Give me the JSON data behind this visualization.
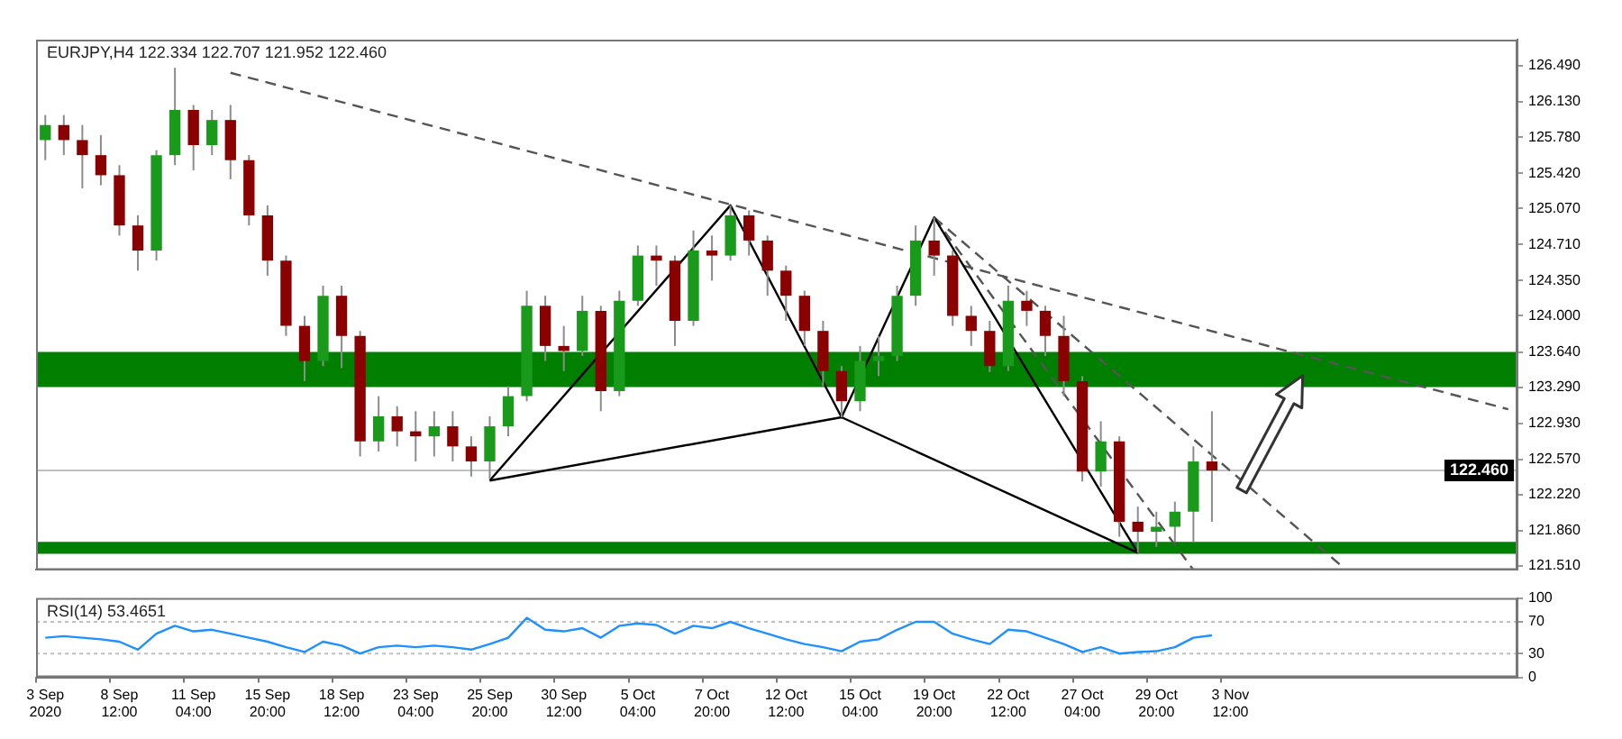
{
  "chart_data": [
    {
      "type": "candlestick",
      "title": "EURJPY,H4 122.334 122.707 121.952 122.460",
      "categories": [
        null,
        null,
        null,
        null,
        null,
        null,
        null,
        null,
        null,
        null,
        null,
        null,
        null,
        null,
        null,
        null,
        null,
        null,
        null,
        null,
        null,
        null,
        null,
        null,
        null,
        null,
        null,
        null,
        null,
        null,
        null,
        null,
        null,
        null,
        null,
        null,
        null,
        null,
        null,
        null,
        null,
        null,
        null,
        null,
        null,
        null,
        null,
        null,
        null,
        null,
        null,
        null,
        null,
        null,
        null,
        null,
        null,
        null,
        null,
        null,
        null,
        null,
        null,
        null,
        null,
        null,
        null,
        null,
        null,
        null,
        null,
        null,
        null,
        null,
        null,
        null,
        null,
        null,
        null,
        null
      ],
      "ohlc": [
        [
          125.75,
          126.0,
          125.55,
          125.9
        ],
        [
          125.9,
          126.0,
          125.6,
          125.75
        ],
        [
          125.75,
          125.9,
          125.27,
          125.6
        ],
        [
          125.6,
          125.8,
          125.3,
          125.4
        ],
        [
          125.4,
          125.5,
          124.8,
          124.9
        ],
        [
          124.9,
          125.0,
          124.45,
          124.65
        ],
        [
          124.65,
          125.65,
          124.55,
          125.6
        ],
        [
          125.6,
          126.47,
          125.5,
          126.05
        ],
        [
          126.05,
          126.1,
          125.45,
          125.7
        ],
        [
          125.7,
          126.05,
          125.6,
          125.95
        ],
        [
          125.95,
          126.1,
          125.36,
          125.55
        ],
        [
          125.55,
          125.6,
          124.9,
          125.0
        ],
        [
          125.0,
          125.1,
          124.4,
          124.55
        ],
        [
          124.55,
          124.6,
          123.8,
          123.9
        ],
        [
          123.9,
          124.0,
          123.35,
          123.55
        ],
        [
          123.55,
          124.3,
          123.5,
          124.2
        ],
        [
          124.2,
          124.3,
          123.48,
          123.8
        ],
        [
          123.8,
          123.85,
          122.6,
          122.75
        ],
        [
          122.75,
          123.2,
          122.65,
          123.0
        ],
        [
          123.0,
          123.1,
          122.7,
          122.85
        ],
        [
          122.85,
          123.05,
          122.55,
          122.8
        ],
        [
          122.8,
          123.05,
          122.6,
          122.9
        ],
        [
          122.9,
          123.05,
          122.55,
          122.7
        ],
        [
          122.7,
          122.8,
          122.4,
          122.55
        ],
        [
          122.55,
          123.0,
          122.38,
          122.9
        ],
        [
          122.9,
          123.3,
          122.8,
          123.2
        ],
        [
          123.2,
          124.25,
          123.15,
          124.1
        ],
        [
          124.1,
          124.2,
          123.55,
          123.7
        ],
        [
          123.7,
          123.9,
          123.45,
          123.65
        ],
        [
          123.65,
          124.2,
          123.6,
          124.05
        ],
        [
          124.05,
          124.1,
          123.05,
          123.25
        ],
        [
          123.25,
          124.25,
          123.2,
          124.15
        ],
        [
          124.15,
          124.7,
          124.1,
          124.6
        ],
        [
          124.6,
          124.7,
          124.3,
          124.55
        ],
        [
          124.55,
          124.6,
          123.7,
          123.95
        ],
        [
          123.95,
          124.85,
          123.9,
          124.65
        ],
        [
          124.65,
          124.8,
          124.35,
          124.6
        ],
        [
          124.6,
          125.1,
          124.55,
          125.0
        ],
        [
          125.0,
          125.05,
          124.6,
          124.75
        ],
        [
          124.75,
          124.8,
          124.2,
          124.45
        ],
        [
          124.45,
          124.5,
          123.95,
          124.2
        ],
        [
          124.2,
          124.25,
          123.7,
          123.85
        ],
        [
          123.85,
          123.95,
          123.3,
          123.45
        ],
        [
          123.45,
          123.5,
          122.99,
          123.15
        ],
        [
          123.15,
          123.7,
          123.05,
          123.55
        ],
        [
          123.55,
          123.8,
          123.4,
          123.6
        ],
        [
          123.6,
          124.3,
          123.55,
          124.2
        ],
        [
          124.2,
          124.9,
          124.1,
          124.75
        ],
        [
          124.75,
          124.98,
          124.4,
          124.6
        ],
        [
          124.6,
          124.65,
          123.9,
          124.0
        ],
        [
          124.0,
          124.1,
          123.7,
          123.85
        ],
        [
          123.85,
          123.95,
          123.44,
          123.5
        ],
        [
          123.5,
          124.3,
          123.45,
          124.15
        ],
        [
          124.15,
          124.25,
          123.9,
          124.05
        ],
        [
          124.05,
          124.1,
          123.6,
          123.8
        ],
        [
          123.8,
          124.0,
          123.2,
          123.35
        ],
        [
          123.35,
          123.4,
          122.35,
          122.45
        ],
        [
          122.45,
          122.95,
          122.3,
          122.75
        ],
        [
          122.75,
          122.8,
          121.8,
          121.95
        ],
        [
          121.95,
          122.1,
          121.64,
          121.85
        ],
        [
          121.85,
          122.05,
          121.7,
          121.9
        ],
        [
          121.9,
          122.15,
          121.75,
          122.05
        ],
        [
          122.05,
          122.7,
          121.75,
          122.55
        ],
        [
          122.55,
          123.05,
          121.95,
          122.46
        ],
        null,
        null,
        null,
        null,
        null,
        null,
        null,
        null,
        null,
        null,
        null,
        null,
        null,
        null,
        null,
        null
      ],
      "series": [
        {
          "type": "line",
          "color": "#000000",
          "line_style": "solid",
          "values": [
            null,
            null,
            null,
            null,
            null,
            null,
            null,
            null,
            null,
            null,
            null,
            null,
            null,
            null,
            null,
            null,
            null,
            null,
            null,
            null,
            null,
            null,
            null,
            null,
            122.36,
            null,
            null,
            null,
            null,
            null,
            null,
            null,
            null,
            null,
            null,
            null,
            null,
            125.1,
            null,
            null,
            null,
            null,
            null,
            122.99,
            null,
            null,
            null,
            null,
            124.98,
            null,
            null,
            null,
            null,
            null,
            null,
            null,
            null,
            null,
            null,
            121.64,
            null,
            null,
            null,
            null,
            null,
            null,
            null,
            null,
            null,
            null,
            null,
            null,
            null,
            null,
            null,
            null,
            null,
            null,
            null,
            null
          ]
        },
        {
          "type": "line",
          "color": "#000000",
          "line_style": "solid",
          "values": [
            null,
            null,
            null,
            null,
            null,
            null,
            null,
            null,
            null,
            null,
            null,
            null,
            null,
            null,
            null,
            null,
            null,
            null,
            null,
            null,
            null,
            null,
            null,
            null,
            122.36,
            null,
            null,
            null,
            null,
            null,
            null,
            null,
            null,
            null,
            null,
            null,
            null,
            null,
            null,
            null,
            null,
            null,
            null,
            122.99,
            null,
            null,
            null,
            null,
            null,
            null,
            null,
            null,
            null,
            null,
            null,
            null,
            null,
            null,
            null,
            121.64,
            null,
            null,
            null,
            null,
            null,
            null,
            null,
            null,
            null,
            null,
            null,
            null,
            null,
            null,
            null,
            null,
            null,
            null,
            null,
            null
          ]
        },
        {
          "type": "line",
          "color": "#555555",
          "line_style": "dashed",
          "values": [
            null,
            null,
            null,
            null,
            null,
            null,
            null,
            null,
            null,
            null,
            126.42,
            null,
            null,
            null,
            null,
            null,
            null,
            null,
            null,
            null,
            null,
            null,
            null,
            null,
            null,
            null,
            null,
            null,
            null,
            null,
            null,
            null,
            null,
            null,
            null,
            null,
            null,
            null,
            null,
            null,
            null,
            null,
            null,
            null,
            null,
            null,
            null,
            null,
            null,
            null,
            null,
            null,
            null,
            null,
            null,
            null,
            null,
            null,
            null,
            null,
            null,
            null,
            null,
            null,
            null,
            null,
            null,
            null,
            null,
            null,
            null,
            null,
            null,
            null,
            null,
            null,
            null,
            null,
            null,
            123.07
          ]
        },
        {
          "type": "line",
          "color": "#555555",
          "line_style": "dashed",
          "values": [
            null,
            null,
            null,
            null,
            null,
            null,
            null,
            null,
            null,
            null,
            null,
            null,
            null,
            null,
            null,
            null,
            null,
            null,
            null,
            null,
            null,
            null,
            null,
            null,
            null,
            null,
            null,
            null,
            null,
            null,
            null,
            null,
            null,
            null,
            null,
            null,
            null,
            null,
            null,
            null,
            null,
            null,
            null,
            null,
            null,
            null,
            null,
            null,
            124.98,
            null,
            null,
            null,
            null,
            null,
            null,
            null,
            null,
            null,
            null,
            null,
            null,
            null,
            121.47,
            null,
            null,
            null,
            null,
            null,
            null,
            null,
            null,
            null,
            null,
            null,
            null,
            null,
            null,
            null,
            null,
            null
          ]
        },
        {
          "type": "line",
          "color": "#555555",
          "line_style": "dashed",
          "values": [
            null,
            null,
            null,
            null,
            null,
            null,
            null,
            null,
            null,
            null,
            null,
            null,
            null,
            null,
            null,
            null,
            null,
            null,
            null,
            null,
            null,
            null,
            null,
            null,
            null,
            null,
            null,
            null,
            null,
            null,
            null,
            null,
            null,
            null,
            null,
            null,
            null,
            null,
            null,
            null,
            null,
            null,
            null,
            null,
            null,
            null,
            null,
            null,
            124.98,
            null,
            null,
            null,
            null,
            null,
            null,
            null,
            null,
            null,
            null,
            null,
            null,
            null,
            null,
            null,
            null,
            null,
            null,
            null,
            null,
            null,
            121.51,
            null,
            null,
            null,
            null,
            null,
            null,
            null,
            null,
            null
          ]
        }
      ],
      "ylim": [
        121.47,
        126.75
      ],
      "yticks": [
        {
          "value": 121.51,
          "label": "121.510"
        },
        {
          "value": 121.86,
          "label": "121.860"
        },
        {
          "value": 122.22,
          "label": "122.220"
        },
        {
          "value": 122.57,
          "label": "122.570"
        },
        {
          "value": 122.93,
          "label": "122.930"
        },
        {
          "value": 123.29,
          "label": "123.290"
        },
        {
          "value": 123.64,
          "label": "123.640"
        },
        {
          "value": 124.0,
          "label": "124.000"
        },
        {
          "value": 124.35,
          "label": "124.350"
        },
        {
          "value": 124.71,
          "label": "124.710"
        },
        {
          "value": 125.07,
          "label": "125.070"
        },
        {
          "value": 125.42,
          "label": "125.420"
        },
        {
          "value": 125.78,
          "label": "125.780"
        },
        {
          "value": 126.13,
          "label": "126.130"
        },
        {
          "value": 126.49,
          "label": "126.490"
        }
      ],
      "ref_lines": [
        {
          "axis": "y",
          "value": 122.46,
          "label": "122.460",
          "color": "#c0c0c0"
        }
      ],
      "bands": [
        {
          "axis": "y",
          "from": 123.29,
          "to": 123.64,
          "color": "#007f00"
        },
        {
          "axis": "y",
          "from": 121.63,
          "to": 121.75,
          "color": "#007f00"
        }
      ],
      "tick_labels": "y"
    },
    {
      "type": "line",
      "title": "RSI(14) 53.4651",
      "categories": [
        "3 Sep 2020",
        null,
        null,
        null,
        "8 Sep 12:00",
        null,
        null,
        null,
        "11 Sep 04:00",
        null,
        null,
        null,
        "15 Sep 20:00",
        null,
        null,
        null,
        "18 Sep 12:00",
        null,
        null,
        null,
        "23 Sep 04:00",
        null,
        null,
        null,
        "25 Sep 20:00",
        null,
        null,
        null,
        "30 Sep 12:00",
        null,
        null,
        null,
        "5 Oct 04:00",
        null,
        null,
        null,
        "7 Oct 20:00",
        null,
        null,
        null,
        "12 Oct 12:00",
        null,
        null,
        null,
        "15 Oct 04:00",
        null,
        null,
        null,
        "19 Oct 20:00",
        null,
        null,
        null,
        "22 Oct 12:00",
        null,
        null,
        null,
        "27 Oct 04:00",
        null,
        null,
        null,
        "29 Oct 20:00",
        null,
        null,
        null,
        "3 Nov 12:00",
        null,
        null,
        null,
        null,
        null,
        null,
        null,
        null,
        null,
        null,
        null,
        null,
        null,
        null,
        null
      ],
      "series": [
        {
          "color": "#1e90ff",
          "values": [
            50,
            52,
            50,
            48,
            45,
            35,
            55,
            65,
            58,
            60,
            55,
            50,
            45,
            38,
            32,
            45,
            40,
            30,
            38,
            40,
            38,
            40,
            38,
            35,
            42,
            50,
            75,
            60,
            58,
            62,
            50,
            65,
            68,
            66,
            55,
            65,
            62,
            70,
            62,
            55,
            48,
            42,
            38,
            33,
            45,
            48,
            60,
            70,
            70,
            55,
            48,
            42,
            60,
            58,
            50,
            42,
            32,
            38,
            30,
            32,
            33,
            38,
            50,
            53,
            null,
            null,
            null,
            null,
            null,
            null,
            null,
            null,
            null,
            null,
            null,
            null,
            null,
            null,
            null,
            null
          ]
        }
      ],
      "ylim": [
        0,
        100
      ],
      "yticks": [
        0,
        30,
        70,
        100
      ],
      "ref_lines": [
        {
          "axis": "y",
          "value": 70,
          "color": "#c0c0c0",
          "line_style": "dotted"
        },
        {
          "axis": "y",
          "value": 30,
          "color": "#c0c0c0",
          "line_style": "dotted"
        }
      ]
    }
  ]
}
